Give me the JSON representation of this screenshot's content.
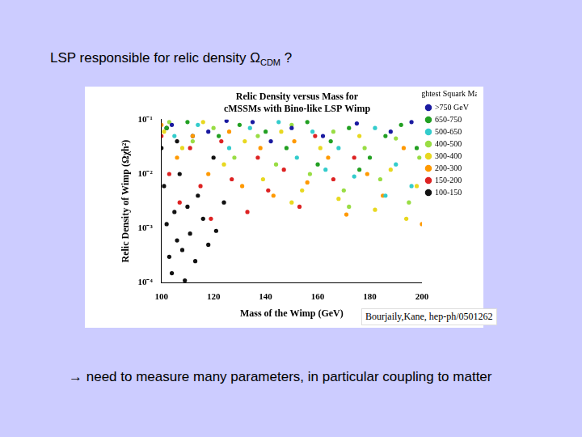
{
  "slide": {
    "title": {
      "text": "LSP responsible for relic density Ω",
      "subscript": "CDM",
      "after": " ?"
    },
    "citation": "Bourjaily,Kane, hep-ph/0501262",
    "note": "→ need to measure many parameters, in particular coupling to matter"
  },
  "chart_data": {
    "type": "scatter",
    "title": [
      "Relic Density versus Mass for",
      "cMSSMs with Bino-like LSP Wimp"
    ],
    "x_label": "Mass of the Wimp (GeV)",
    "y_label": "Relic Density of Wimp (Ωχh²)",
    "legend_title": "Lightest Squark Mass",
    "legend": "right",
    "log": "y",
    "grid": false,
    "marker": "circle",
    "xlim": [
      100,
      200
    ],
    "xticks": [
      100,
      120,
      140,
      160,
      180,
      200
    ],
    "ylim": [
      0.0001,
      0.1
    ],
    "yticks": [
      {
        "value": 0.0001,
        "label": "10⁻⁴"
      },
      {
        "value": 0.001,
        "label": "10⁻³"
      },
      {
        "value": 0.01,
        "label": "10⁻²"
      },
      {
        "value": 0.1,
        "label": "10⁻¹"
      }
    ],
    "series": [
      {
        "name": ">750 GeV",
        "color": "#1a1aa0",
        "x": [
          104,
          118,
          135,
          150,
          162,
          175,
          188,
          196,
          142,
          125
        ],
        "values": [
          0.08,
          0.06,
          0.09,
          0.07,
          0.05,
          0.085,
          0.06,
          0.09,
          0.04,
          0.095
        ]
      },
      {
        "name": "650-750",
        "color": "#22a022",
        "x": [
          102,
          110,
          122,
          130,
          140,
          148,
          156,
          165,
          172,
          180,
          186,
          192,
          198,
          160,
          176
        ],
        "values": [
          0.07,
          0.09,
          0.05,
          0.08,
          0.06,
          0.03,
          0.09,
          0.04,
          0.07,
          0.02,
          0.05,
          0.08,
          0.03,
          0.015,
          0.012
        ]
      },
      {
        "name": "500-650",
        "color": "#33cccc",
        "x": [
          105,
          114,
          126,
          134,
          145,
          152,
          158,
          168,
          174,
          182,
          190,
          196,
          186,
          163
        ],
        "values": [
          0.05,
          0.08,
          0.03,
          0.07,
          0.09,
          0.02,
          0.06,
          0.03,
          0.009,
          0.07,
          0.015,
          0.006,
          0.004,
          0.012
        ]
      },
      {
        "name": "400-500",
        "color": "#99dd44",
        "x": [
          103,
          112,
          120,
          128,
          137,
          144,
          150,
          157,
          166,
          170,
          178,
          184,
          190,
          195,
          199,
          172
        ],
        "values": [
          0.09,
          0.04,
          0.07,
          0.02,
          0.05,
          0.015,
          0.08,
          0.01,
          0.06,
          0.005,
          0.03,
          0.008,
          0.045,
          0.003,
          0.02,
          0.0025
        ]
      },
      {
        "name": "300-400",
        "color": "#e8d820",
        "x": [
          101,
          108,
          116,
          124,
          132,
          139,
          146,
          154,
          161,
          168,
          176,
          182,
          188,
          194,
          198,
          150
        ],
        "values": [
          0.06,
          0.03,
          0.09,
          0.015,
          0.04,
          0.008,
          0.06,
          0.005,
          0.03,
          0.0035,
          0.05,
          0.0022,
          0.012,
          0.0015,
          0.006,
          0.003
        ]
      },
      {
        "name": "200-300",
        "color": "#ff9900",
        "x": [
          100,
          106,
          112,
          118,
          126,
          131,
          138,
          143,
          151,
          156,
          164,
          171,
          179,
          185,
          193,
          200
        ],
        "values": [
          0.08,
          0.02,
          0.05,
          0.01,
          0.06,
          0.006,
          0.03,
          0.004,
          0.04,
          0.007,
          0.02,
          0.0018,
          0.01,
          0.004,
          0.03,
          0.0012
        ]
      },
      {
        "name": "150-200",
        "color": "#dd2222",
        "x": [
          100,
          103,
          107,
          111,
          115,
          119,
          123,
          127,
          133,
          137,
          141,
          147,
          153,
          159,
          166,
          174
        ],
        "values": [
          0.05,
          0.01,
          0.003,
          0.03,
          0.006,
          0.0015,
          0.04,
          0.008,
          0.002,
          0.02,
          0.005,
          0.012,
          0.0025,
          0.05,
          0.008,
          0.02
        ]
      },
      {
        "name": "100-150",
        "color": "#111111",
        "x": [
          100,
          101,
          102,
          103,
          104,
          105,
          106,
          107,
          108,
          109,
          110,
          111,
          112,
          113,
          114,
          116,
          118,
          120,
          121,
          124,
          102,
          106
        ],
        "values": [
          0.03,
          0.006,
          0.0012,
          0.0003,
          0.00015,
          0.002,
          0.0006,
          0.01,
          0.0004,
          0.00011,
          0.0025,
          0.0008,
          0.05,
          0.00025,
          0.004,
          0.0015,
          0.0005,
          0.02,
          0.0009,
          0.003,
          0.07,
          0.04
        ]
      }
    ]
  }
}
